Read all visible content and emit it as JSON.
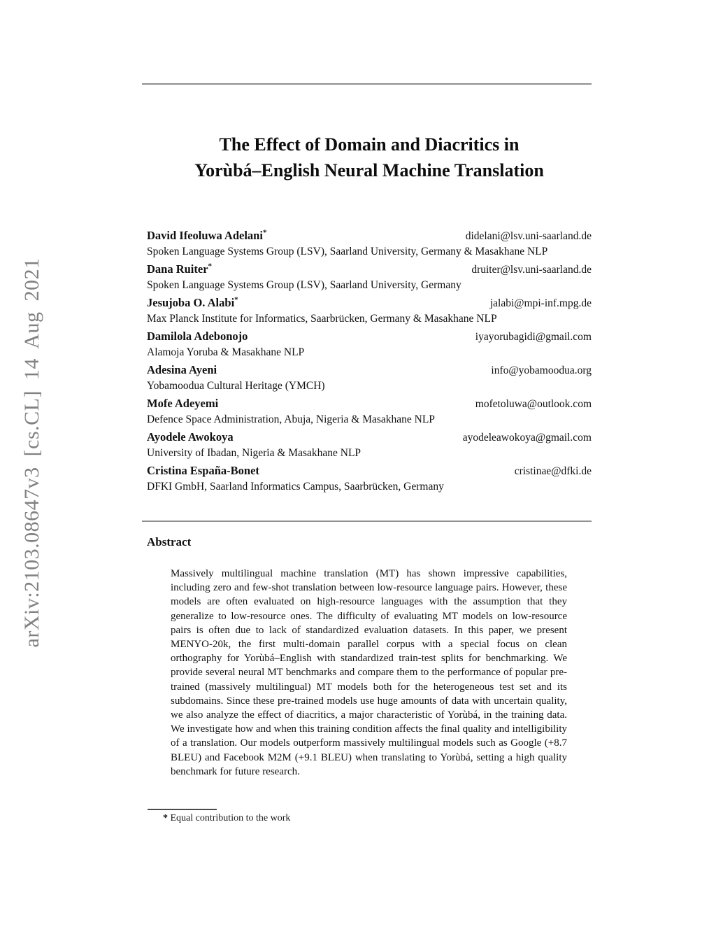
{
  "page": {
    "arxiv_stamp": "arXiv:2103.08647v3 [cs.CL] 14 Aug 2021",
    "title": {
      "line1": "The Effect of Domain and Diacritics in",
      "line2": "Yorùbá–English Neural Machine Translation"
    },
    "authors": [
      {
        "name": "David Ifeoluwa Adelani",
        "mark": "*",
        "email": "didelani@lsv.uni-saarland.de",
        "affiliation": "Spoken Language Systems Group (LSV), Saarland University, Germany & Masakhane NLP"
      },
      {
        "name": "Dana Ruiter",
        "mark": "*",
        "email": "druiter@lsv.uni-saarland.de",
        "affiliation": "Spoken Language Systems Group (LSV), Saarland University, Germany"
      },
      {
        "name": "Jesujoba O. Alabi",
        "mark": "*",
        "email": "jalabi@mpi-inf.mpg.de",
        "affiliation": "Max Planck Institute for Informatics, Saarbrücken, Germany & Masakhane NLP"
      },
      {
        "name": "Damilola Adebonojo",
        "mark": "",
        "email": "iyayorubagidi@gmail.com",
        "affiliation": "Alamoja Yoruba & Masakhane NLP"
      },
      {
        "name": "Adesina Ayeni",
        "mark": "",
        "email": "info@yobamoodua.org",
        "affiliation": "Yobamoodua Cultural Heritage (YMCH)"
      },
      {
        "name": "Mofe Adeyemi",
        "mark": "",
        "email": "mofetoluwa@outlook.com",
        "affiliation": "Defence Space Administration, Abuja, Nigeria & Masakhane NLP"
      },
      {
        "name": "Ayodele Awokoya",
        "mark": "",
        "email": "ayodeleawokoya@gmail.com",
        "affiliation": "University of Ibadan, Nigeria & Masakhane NLP"
      },
      {
        "name": "Cristina España-Bonet",
        "mark": "",
        "email": "cristinae@dfki.de",
        "affiliation": "DFKI GmbH, Saarland Informatics Campus, Saarbrücken, Germany"
      }
    ],
    "abstract": {
      "heading": "Abstract",
      "body": "Massively multilingual machine translation (MT) has shown impressive capabilities, including zero and few-shot translation between low-resource language pairs. However, these models are often evaluated on high-resource languages with the assumption that they generalize to low-resource ones. The difficulty of evaluating MT models on low-resource pairs is often due to lack of standardized evaluation datasets. In this paper, we present MENYO-20k, the first multi-domain parallel corpus with a special focus on clean orthography for Yorùbá–English with standardized train-test splits for benchmarking. We provide several neural MT benchmarks and compare them to the performance of popular pre-trained (massively multilingual) MT models both for the heterogeneous test set and its subdomains. Since these pre-trained models use huge amounts of data with uncertain quality, we also analyze the effect of diacritics, a major characteristic of Yorùbá, in the training data. We investigate how and when this training condition affects the final quality and intelligibility of a translation. Our models outperform massively multilingual models such as Google (+8.7 BLEU) and Facebook M2M (+9.1 BLEU) when translating to Yorùbá, setting a high quality benchmark for future research."
    },
    "footnote": {
      "mark": "*",
      "text": "Equal contribution to the work"
    }
  }
}
